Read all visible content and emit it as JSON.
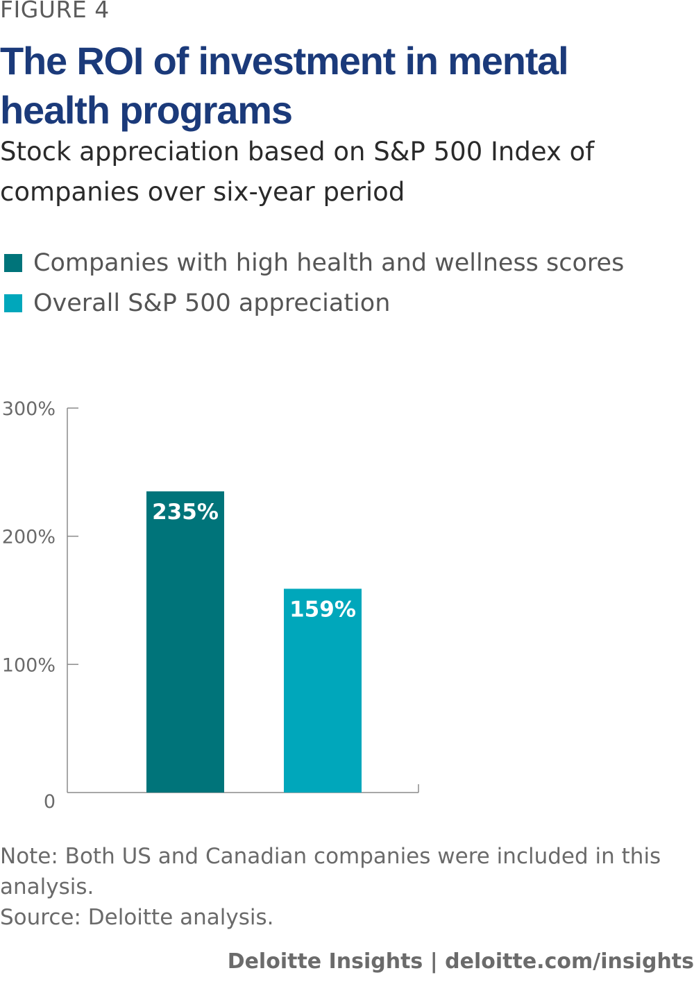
{
  "figure_label": "FIGURE 4",
  "title": "The ROI of investment in mental health programs",
  "subtitle": "Stock appreciation based on S&P 500 Index of companies over six-year period",
  "notes": {
    "note": "Note: Both US and Canadian companies were included in this analysis.",
    "source": "Source: Deloitte analysis."
  },
  "footer": {
    "brand": "Deloitte Insights",
    "separator": "|",
    "url": "deloitte.com/insights"
  },
  "colors": {
    "title": "#1b3a7a",
    "series_high": "#00747a",
    "series_overall": "#00a7bb"
  },
  "chart_data": {
    "type": "bar",
    "categories": [
      "Companies with high health and wellness scores",
      "Overall S&P 500 appreciation"
    ],
    "values": [
      235,
      159
    ],
    "data_labels": [
      "235%",
      "159%"
    ],
    "colors": [
      "#00747a",
      "#00a7bb"
    ],
    "legend": [
      {
        "label": "Companies with high health and wellness scores",
        "color": "#00747a"
      },
      {
        "label": "Overall S&P 500 appreciation",
        "color": "#00a7bb"
      }
    ],
    "legend_position": "top-left",
    "y_ticks": [
      0,
      100,
      200,
      300
    ],
    "y_tick_labels": [
      "0",
      "100%",
      "200%",
      "300%"
    ],
    "ylim": [
      0,
      300
    ],
    "grid": false,
    "xlabel": "",
    "ylabel": ""
  }
}
